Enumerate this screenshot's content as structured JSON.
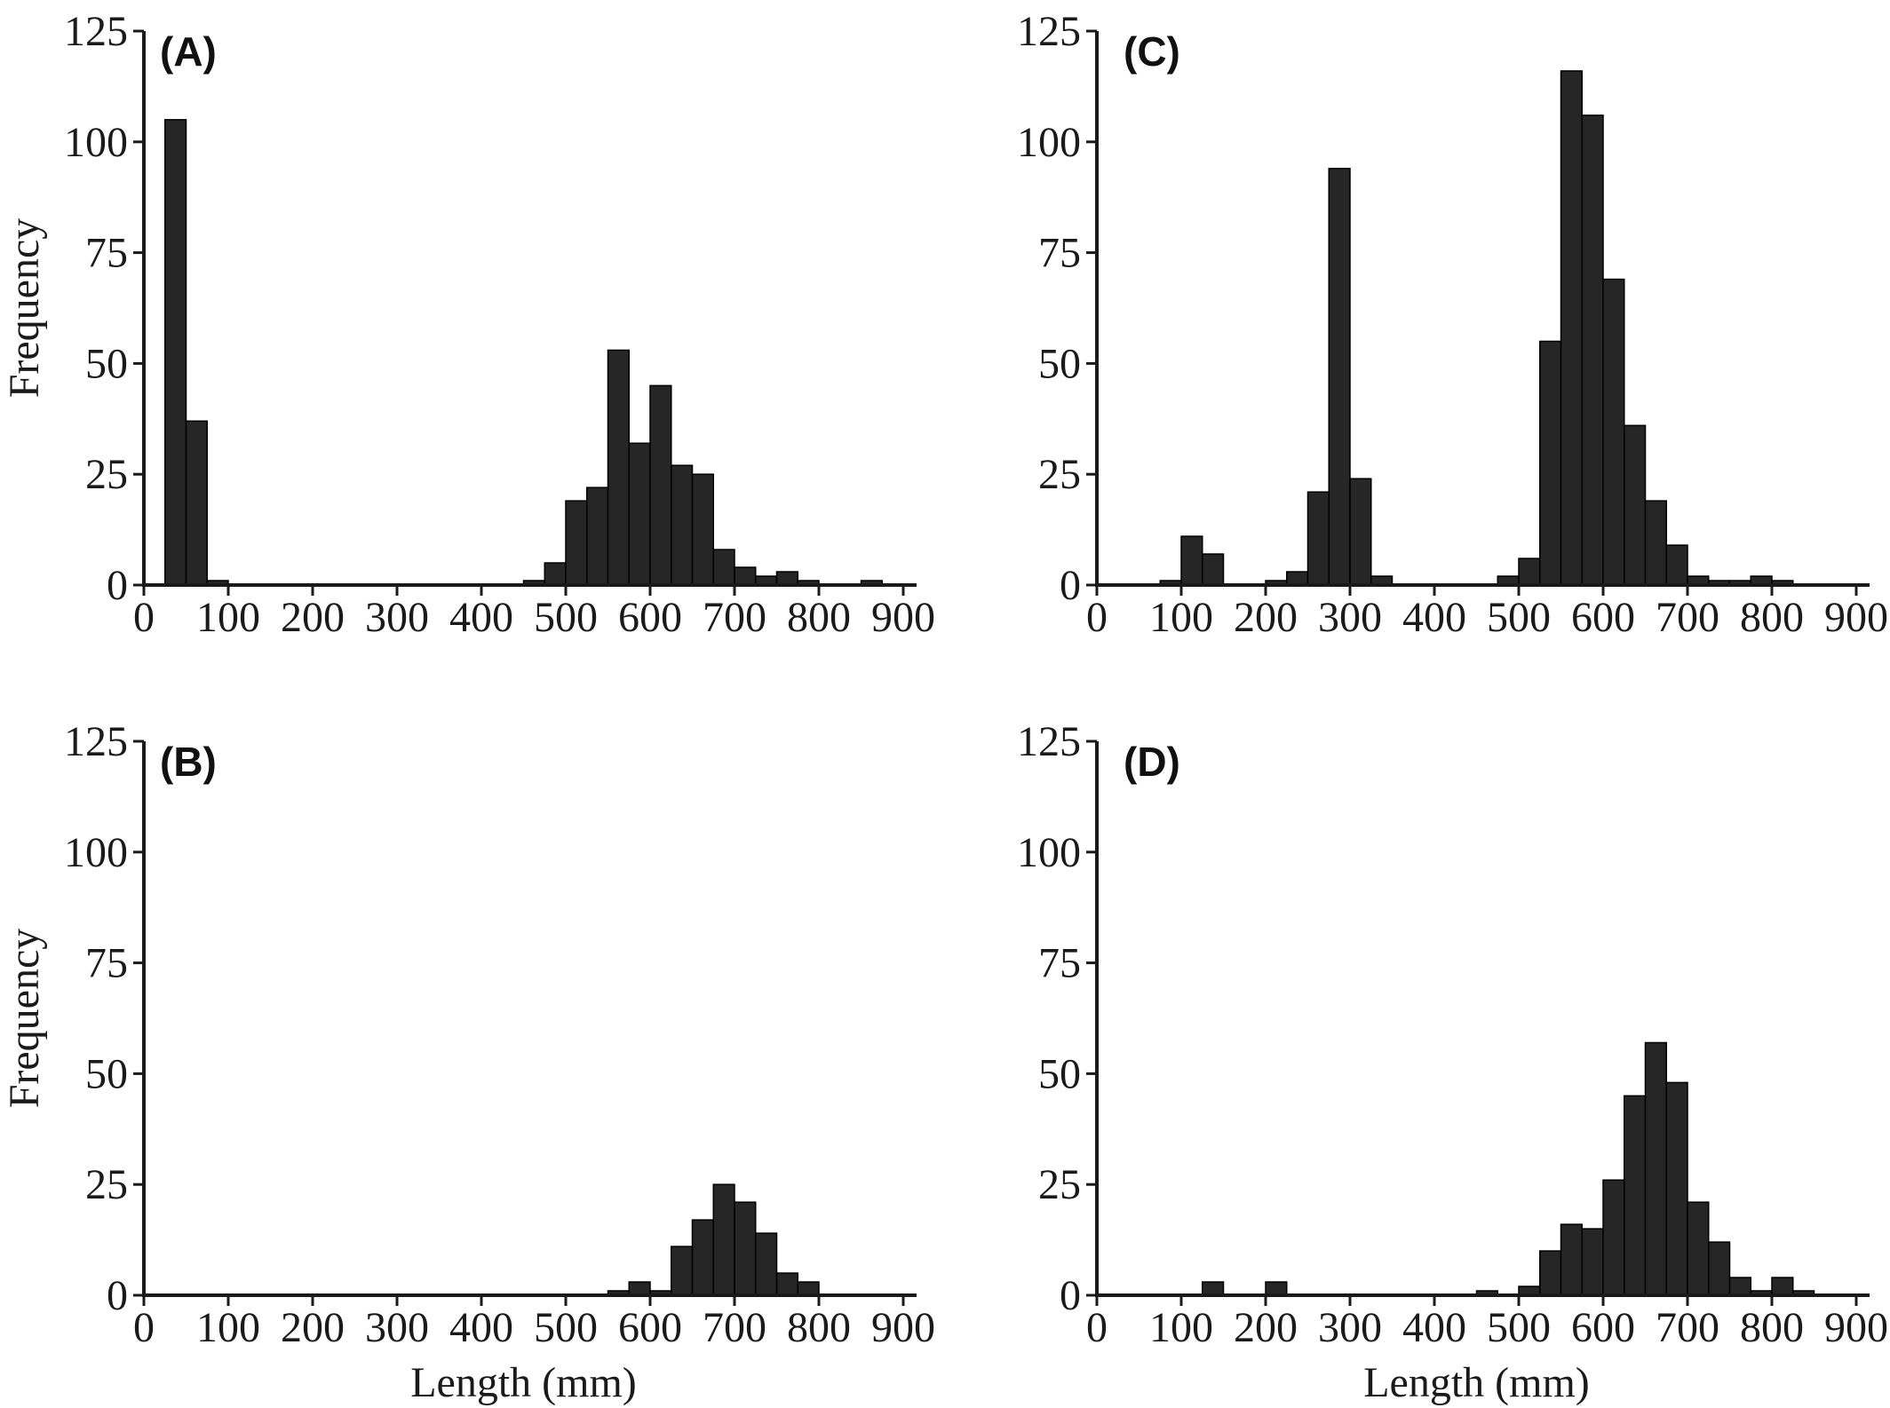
{
  "chart_data": [
    {
      "type": "bar",
      "panel": "(A)",
      "xlabel": "",
      "ylabel": "Frequency",
      "xlim": [
        0,
        920
      ],
      "ylim": [
        0,
        125
      ],
      "xticks": [
        0,
        100,
        200,
        300,
        400,
        500,
        600,
        700,
        800,
        900
      ],
      "yticks": [
        0,
        25,
        50,
        75,
        100,
        125
      ],
      "bin_width": 25,
      "bins": [
        {
          "x": 25,
          "value": 105
        },
        {
          "x": 50,
          "value": 37
        },
        {
          "x": 75,
          "value": 1
        },
        {
          "x": 450,
          "value": 1
        },
        {
          "x": 475,
          "value": 5
        },
        {
          "x": 500,
          "value": 19
        },
        {
          "x": 525,
          "value": 22
        },
        {
          "x": 550,
          "value": 53
        },
        {
          "x": 575,
          "value": 32
        },
        {
          "x": 600,
          "value": 45
        },
        {
          "x": 625,
          "value": 27
        },
        {
          "x": 650,
          "value": 25
        },
        {
          "x": 675,
          "value": 8
        },
        {
          "x": 700,
          "value": 4
        },
        {
          "x": 725,
          "value": 2
        },
        {
          "x": 750,
          "value": 3
        },
        {
          "x": 775,
          "value": 1
        },
        {
          "x": 850,
          "value": 1
        }
      ]
    },
    {
      "type": "bar",
      "panel": "(B)",
      "xlabel": "Length (mm)",
      "ylabel": "Frequency",
      "xlim": [
        0,
        920
      ],
      "ylim": [
        0,
        125
      ],
      "xticks": [
        0,
        100,
        200,
        300,
        400,
        500,
        600,
        700,
        800,
        900
      ],
      "yticks": [
        0,
        25,
        50,
        75,
        100,
        125
      ],
      "bin_width": 25,
      "bins": [
        {
          "x": 550,
          "value": 1
        },
        {
          "x": 575,
          "value": 3
        },
        {
          "x": 600,
          "value": 1
        },
        {
          "x": 625,
          "value": 11
        },
        {
          "x": 650,
          "value": 17
        },
        {
          "x": 675,
          "value": 25
        },
        {
          "x": 700,
          "value": 21
        },
        {
          "x": 725,
          "value": 14
        },
        {
          "x": 750,
          "value": 5
        },
        {
          "x": 775,
          "value": 3
        }
      ]
    },
    {
      "type": "bar",
      "panel": "(C)",
      "xlabel": "",
      "ylabel": "",
      "xlim": [
        0,
        920
      ],
      "ylim": [
        0,
        125
      ],
      "xticks": [
        0,
        100,
        200,
        300,
        400,
        500,
        600,
        700,
        800,
        900
      ],
      "yticks": [
        0,
        25,
        50,
        75,
        100,
        125
      ],
      "bin_width": 25,
      "bins": [
        {
          "x": 75,
          "value": 1
        },
        {
          "x": 100,
          "value": 11
        },
        {
          "x": 125,
          "value": 7
        },
        {
          "x": 200,
          "value": 1
        },
        {
          "x": 225,
          "value": 3
        },
        {
          "x": 250,
          "value": 21
        },
        {
          "x": 275,
          "value": 94
        },
        {
          "x": 300,
          "value": 24
        },
        {
          "x": 325,
          "value": 2
        },
        {
          "x": 475,
          "value": 2
        },
        {
          "x": 500,
          "value": 6
        },
        {
          "x": 525,
          "value": 55
        },
        {
          "x": 550,
          "value": 116
        },
        {
          "x": 575,
          "value": 106
        },
        {
          "x": 600,
          "value": 69
        },
        {
          "x": 625,
          "value": 36
        },
        {
          "x": 650,
          "value": 19
        },
        {
          "x": 675,
          "value": 9
        },
        {
          "x": 700,
          "value": 2
        },
        {
          "x": 725,
          "value": 1
        },
        {
          "x": 750,
          "value": 1
        },
        {
          "x": 775,
          "value": 2
        },
        {
          "x": 800,
          "value": 1
        }
      ]
    },
    {
      "type": "bar",
      "panel": "(D)",
      "xlabel": "Length (mm)",
      "ylabel": "",
      "xlim": [
        0,
        920
      ],
      "ylim": [
        0,
        125
      ],
      "xticks": [
        0,
        100,
        200,
        300,
        400,
        500,
        600,
        700,
        800,
        900
      ],
      "yticks": [
        0,
        25,
        50,
        75,
        100,
        125
      ],
      "bin_width": 25,
      "bins": [
        {
          "x": 125,
          "value": 3
        },
        {
          "x": 200,
          "value": 3
        },
        {
          "x": 450,
          "value": 1
        },
        {
          "x": 500,
          "value": 2
        },
        {
          "x": 525,
          "value": 10
        },
        {
          "x": 550,
          "value": 16
        },
        {
          "x": 575,
          "value": 15
        },
        {
          "x": 600,
          "value": 26
        },
        {
          "x": 625,
          "value": 45
        },
        {
          "x": 650,
          "value": 57
        },
        {
          "x": 675,
          "value": 48
        },
        {
          "x": 700,
          "value": 21
        },
        {
          "x": 725,
          "value": 12
        },
        {
          "x": 750,
          "value": 4
        },
        {
          "x": 775,
          "value": 1
        },
        {
          "x": 800,
          "value": 4
        },
        {
          "x": 825,
          "value": 1
        }
      ]
    }
  ]
}
